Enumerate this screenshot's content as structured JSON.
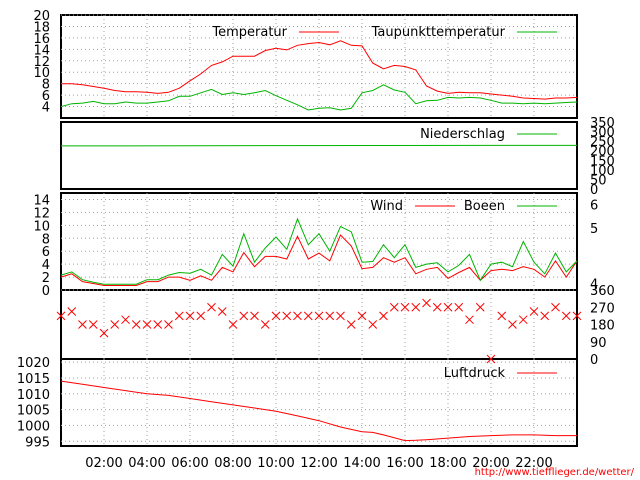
{
  "credit_url": "http://www.tiefflieger.de/wetter/",
  "x_axis": {
    "unit": "hour",
    "range": [
      0,
      24
    ],
    "tick_labels": [
      "02:00",
      "04:00",
      "06:00",
      "08:00",
      "10:00",
      "12:00",
      "14:00",
      "16:00",
      "18:00",
      "20:00",
      "22:00"
    ],
    "tick_values": [
      2,
      4,
      6,
      8,
      10,
      12,
      14,
      16,
      18,
      20,
      22
    ]
  },
  "colors": {
    "red": "#ff0000",
    "green": "#00b400",
    "grid": "#a0a0a0"
  },
  "chart_data": [
    {
      "type": "line",
      "panel": "temperature",
      "ylim": [
        2,
        20
      ],
      "yticks_left": [
        "4",
        "6",
        "8",
        "10",
        "12",
        "14",
        "16",
        "18",
        "20"
      ],
      "grid": true,
      "legend_position": "top",
      "x": [
        0,
        0.5,
        1,
        1.5,
        2,
        2.5,
        3,
        3.5,
        4,
        4.5,
        5,
        5.5,
        6,
        6.5,
        7,
        7.5,
        8,
        8.5,
        9,
        9.5,
        10,
        10.5,
        11,
        11.5,
        12,
        12.5,
        13,
        13.5,
        14,
        14.5,
        15,
        15.5,
        16,
        16.5,
        17,
        17.5,
        18,
        18.5,
        19,
        19.5,
        20,
        20.5,
        21,
        21.5,
        22,
        22.5,
        23,
        23.5,
        24
      ],
      "series": [
        {
          "name": "Temperatur",
          "color": "#ff0000",
          "values": [
            8,
            8,
            7.8,
            7.5,
            7.2,
            6.8,
            6.6,
            6.6,
            6.5,
            6.3,
            6.5,
            7.2,
            8.5,
            9.7,
            11.2,
            11.8,
            12.8,
            12.8,
            12.8,
            13.8,
            14.2,
            13.9,
            14.7,
            15,
            15.2,
            14.8,
            15.5,
            14.7,
            14.6,
            11.6,
            10.6,
            11.2,
            11,
            10.4,
            7.6,
            6.7,
            6.3,
            6.5,
            6.4,
            6.4,
            6.2,
            6,
            5.8,
            5.5,
            5.4,
            5.3,
            5.5,
            5.5,
            5.6
          ]
        },
        {
          "name": "Taupunkttemperatur",
          "color": "#00b400",
          "values": [
            4,
            4.5,
            4.6,
            4.9,
            4.5,
            4.5,
            4.8,
            4.6,
            4.6,
            4.8,
            5,
            5.8,
            5.8,
            6.4,
            7,
            6.1,
            6.4,
            6.1,
            6.4,
            6.8,
            5.9,
            5.1,
            4.3,
            3.4,
            3.7,
            3.8,
            3.4,
            3.7,
            6.4,
            6.8,
            7.8,
            6.9,
            6.5,
            4.5,
            5,
            5.1,
            5.6,
            5.5,
            5.6,
            5.5,
            5.1,
            4.6,
            4.6,
            4.5,
            4.6,
            4.5,
            4.6,
            4.7,
            4.8
          ]
        }
      ]
    },
    {
      "type": "line",
      "panel": "precipitation",
      "ylim": [
        0,
        350
      ],
      "yticks_right": [
        "0",
        "50",
        "100",
        "150",
        "200",
        "250",
        "300",
        "350"
      ],
      "legend_position": "top-right",
      "x": [
        0,
        20,
        24
      ],
      "series": [
        {
          "name": "Niederschlag",
          "color": "#00b400",
          "values": [
            225,
            228,
            228
          ]
        }
      ]
    },
    {
      "type": "line",
      "panel": "wind",
      "ylim": [
        0,
        15
      ],
      "yticks_left": [
        "0",
        "2",
        "4",
        "6",
        "8",
        "10",
        "12",
        "14"
      ],
      "yticks_right": [
        "4",
        "5",
        "6"
      ],
      "grid": true,
      "legend_position": "top-right",
      "x": [
        0,
        0.5,
        1,
        1.5,
        2,
        2.5,
        3,
        3.5,
        4,
        4.5,
        5,
        5.5,
        6,
        6.5,
        7,
        7.5,
        8,
        8.5,
        9,
        9.5,
        10,
        10.5,
        11,
        11.5,
        12,
        12.5,
        13,
        13.5,
        14,
        14.5,
        15,
        15.5,
        16,
        16.5,
        17,
        17.5,
        18,
        18.5,
        19,
        19.5,
        20,
        20.5,
        21,
        21.5,
        22,
        22.5,
        23,
        23.5,
        24
      ],
      "series": [
        {
          "name": "Wind",
          "color": "#ff0000",
          "values": [
            2,
            2.5,
            1.3,
            1,
            0.7,
            0.7,
            0.7,
            0.7,
            1.3,
            1.3,
            2,
            2,
            1.5,
            2.2,
            1.5,
            3.5,
            2.8,
            5.8,
            3.6,
            5.2,
            5.2,
            4.8,
            8.3,
            4.8,
            5.7,
            4.5,
            8.5,
            6.8,
            3.3,
            3.5,
            5,
            4.3,
            5,
            2.5,
            3.2,
            3.5,
            1.8,
            2.7,
            3.5,
            1.5,
            3,
            3.2,
            3,
            3.6,
            3.2,
            2,
            4.5,
            2,
            4.5
          ]
        },
        {
          "name": "Boeen",
          "color": "#00b400",
          "values": [
            2.3,
            2.8,
            1.6,
            1.2,
            0.9,
            0.9,
            0.9,
            0.9,
            1.6,
            1.6,
            2.3,
            2.7,
            2.6,
            3.2,
            2.3,
            5.5,
            3.7,
            8.7,
            4.3,
            6.5,
            8.2,
            6.3,
            11,
            7,
            8.7,
            6,
            9.8,
            9,
            4.3,
            4.4,
            7,
            5,
            7,
            3.5,
            4,
            4.2,
            2.8,
            3.8,
            5.5,
            1.5,
            4,
            4.3,
            3.6,
            7.5,
            4.3,
            2.5,
            5.7,
            2.8,
            4.5
          ]
        }
      ]
    },
    {
      "type": "scatter",
      "panel": "wind_direction",
      "ylim": [
        0,
        360
      ],
      "yticks_right": [
        "0",
        "90",
        "180",
        "270",
        "360"
      ],
      "marker": "x",
      "color": "#ff0000",
      "x": [
        0,
        0.5,
        1,
        1.5,
        2,
        2.5,
        3,
        3.5,
        4,
        4.5,
        5,
        5.5,
        6,
        6.5,
        7,
        7.5,
        8,
        8.5,
        9,
        9.5,
        10,
        10.5,
        11,
        11.5,
        12,
        12.5,
        13,
        13.5,
        14,
        14.5,
        15,
        15.5,
        16,
        16.5,
        17,
        17.5,
        18,
        18.5,
        19,
        19.5,
        20,
        20.5,
        21,
        21.5,
        22,
        22.5,
        23,
        23.5,
        24
      ],
      "values": [
        225,
        248,
        180,
        180,
        135,
        180,
        205,
        180,
        180,
        180,
        180,
        225,
        225,
        225,
        270,
        248,
        180,
        225,
        225,
        180,
        225,
        225,
        225,
        225,
        225,
        225,
        225,
        180,
        225,
        180,
        225,
        270,
        270,
        270,
        292,
        270,
        270,
        270,
        205,
        270,
        0,
        225,
        180,
        205,
        248,
        225,
        270,
        225,
        225
      ]
    },
    {
      "type": "line",
      "panel": "pressure",
      "ylim": [
        993.5,
        1021
      ],
      "yticks_left": [
        "995",
        "1000",
        "1005",
        "1010",
        "1015",
        "1020"
      ],
      "grid": true,
      "legend_position": "top-right",
      "x": [
        0,
        1,
        2,
        3,
        4,
        5,
        6,
        7,
        8,
        9,
        10,
        11,
        12,
        13,
        14,
        14.5,
        15,
        16,
        16.5,
        17,
        18,
        19,
        20,
        21,
        22,
        23,
        24
      ],
      "series": [
        {
          "name": "Luftdruck",
          "color": "#ff0000",
          "values": [
            1014,
            1013,
            1012,
            1011,
            1010,
            1009.5,
            1008.5,
            1007.5,
            1006.5,
            1005.5,
            1004.5,
            1003,
            1001.5,
            999.5,
            998,
            997.8,
            997,
            995.2,
            995.3,
            995.5,
            996,
            996.5,
            996.8,
            997,
            997,
            996.8,
            996.8
          ]
        }
      ]
    }
  ]
}
